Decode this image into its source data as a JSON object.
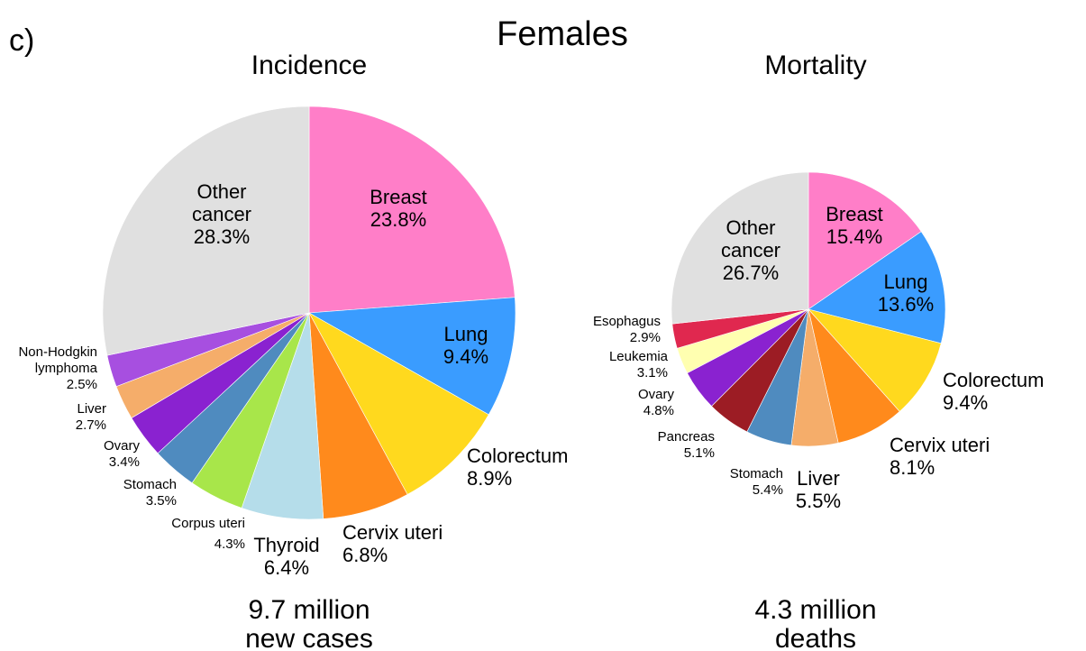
{
  "figure": {
    "panel_label": "c)",
    "title": "Females"
  },
  "chart_data": [
    {
      "type": "pie",
      "title": "Incidence",
      "total_label": [
        "9.7 million",
        "new cases"
      ],
      "start_angle_deg": 0,
      "direction": "clockwise",
      "slices": [
        {
          "name": "Breast",
          "value": 23.8,
          "pct": "23.8%",
          "color": "#FF7EC8"
        },
        {
          "name": "Lung",
          "value": 9.4,
          "pct": "9.4%",
          "color": "#3A9CFF"
        },
        {
          "name": "Colorectum",
          "value": 8.9,
          "pct": "8.9%",
          "color": "#FFD91E"
        },
        {
          "name": "Cervix uteri",
          "value": 6.8,
          "pct": "6.8%",
          "color": "#FF8A1C"
        },
        {
          "name": "Thyroid",
          "value": 6.4,
          "pct": "6.4%",
          "color": "#B5DDEA"
        },
        {
          "name": "Corpus uteri",
          "value": 4.3,
          "pct": "4.3%",
          "color": "#A8E64A"
        },
        {
          "name": "Stomach",
          "value": 3.5,
          "pct": "3.5%",
          "color": "#4F8BBF"
        },
        {
          "name": "Ovary",
          "value": 3.4,
          "pct": "3.4%",
          "color": "#8A22D0"
        },
        {
          "name": "Liver",
          "value": 2.7,
          "pct": "2.7%",
          "color": "#F5AD6A"
        },
        {
          "name": "Non-Hodgkin lymphoma",
          "value": 2.5,
          "pct": "2.5%",
          "color": "#A74FE0"
        },
        {
          "name": "Other cancer",
          "value": 28.3,
          "pct": "28.3%",
          "color": "#E0E0E0"
        }
      ]
    },
    {
      "type": "pie",
      "title": "Mortality",
      "total_label": [
        "4.3 million",
        "deaths"
      ],
      "start_angle_deg": 0,
      "direction": "clockwise",
      "slices": [
        {
          "name": "Breast",
          "value": 15.4,
          "pct": "15.4%",
          "color": "#FF7EC8"
        },
        {
          "name": "Lung",
          "value": 13.6,
          "pct": "13.6%",
          "color": "#3A9CFF"
        },
        {
          "name": "Colorectum",
          "value": 9.4,
          "pct": "9.4%",
          "color": "#FFD91E"
        },
        {
          "name": "Cervix uteri",
          "value": 8.1,
          "pct": "8.1%",
          "color": "#FF8A1C"
        },
        {
          "name": "Liver",
          "value": 5.5,
          "pct": "5.5%",
          "color": "#F5AD6A"
        },
        {
          "name": "Stomach",
          "value": 5.4,
          "pct": "5.4%",
          "color": "#4F8BBF"
        },
        {
          "name": "Pancreas",
          "value": 5.1,
          "pct": "5.1%",
          "color": "#9C1C24"
        },
        {
          "name": "Ovary",
          "value": 4.8,
          "pct": "4.8%",
          "color": "#8A22D0"
        },
        {
          "name": "Leukemia",
          "value": 3.1,
          "pct": "3.1%",
          "color": "#FFFFB0"
        },
        {
          "name": "Esophagus",
          "value": 2.9,
          "pct": "2.9%",
          "color": "#E0284F"
        },
        {
          "name": "Other cancer",
          "value": 26.7,
          "pct": "26.7%",
          "color": "#E0E0E0"
        }
      ]
    }
  ]
}
